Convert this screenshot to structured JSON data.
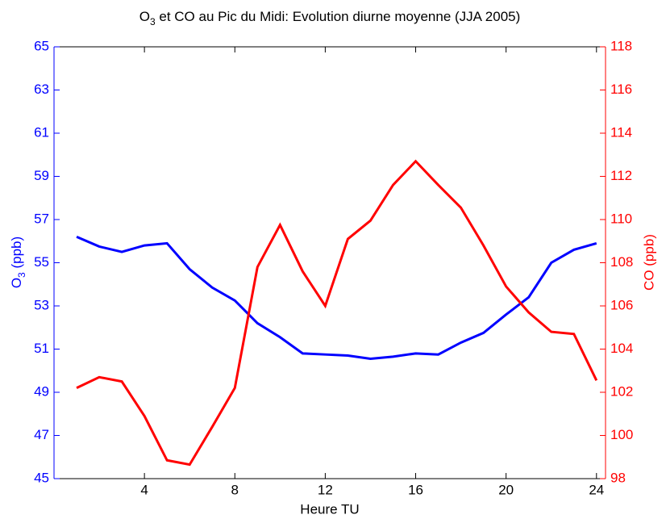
{
  "chart_data": {
    "type": "line",
    "title": {
      "main": "O",
      "sub": "3",
      "rest": " et CO au Pic du Midi: Evolution diurne moyenne (JJA 2005)"
    },
    "xlabel": "Heure TU",
    "ylabel": {
      "main": "O",
      "sub": "3",
      "rest": " (ppb)"
    },
    "y2label": "CO (ppb)",
    "x": [
      1,
      2,
      3,
      4,
      5,
      6,
      7,
      8,
      9,
      10,
      11,
      12,
      13,
      14,
      15,
      16,
      17,
      18,
      19,
      20,
      21,
      22,
      23,
      24
    ],
    "xlim": [
      0,
      24.4
    ],
    "xticks": [
      4,
      8,
      12,
      16,
      20,
      24
    ],
    "ylim": [
      45,
      65
    ],
    "yticks": [
      45,
      47,
      49,
      51,
      53,
      55,
      57,
      59,
      61,
      63,
      65
    ],
    "y2lim": [
      98,
      118
    ],
    "y2ticks": [
      98,
      100,
      102,
      104,
      106,
      108,
      110,
      112,
      114,
      116,
      118
    ],
    "yaxis_color": "#0000ff",
    "y2axis_color": "#ff0000",
    "series": [
      {
        "color": "#0000ff",
        "axis": "y",
        "values": [
          56.2,
          55.75,
          55.5,
          55.8,
          55.9,
          54.7,
          53.85,
          53.25,
          52.2,
          51.55,
          50.8,
          50.75,
          50.7,
          50.55,
          50.65,
          50.8,
          50.75,
          51.3,
          51.75,
          52.6,
          53.4,
          55.0,
          55.6,
          55.9
        ]
      },
      {
        "color": "#ff0000",
        "axis": "y2",
        "values": [
          102.2,
          102.7,
          102.5,
          100.9,
          98.85,
          98.65,
          100.4,
          102.2,
          107.8,
          109.75,
          107.6,
          106.0,
          109.1,
          109.95,
          111.6,
          112.7,
          111.6,
          110.55,
          108.8,
          106.9,
          105.7,
          104.8,
          104.7,
          102.55
        ]
      }
    ]
  }
}
